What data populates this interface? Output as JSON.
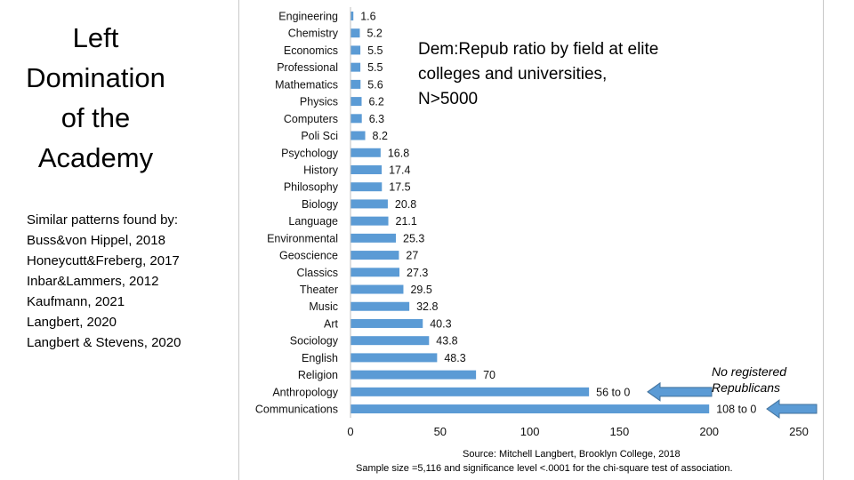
{
  "slide": {
    "title": "Left\nDomination\nof the\nAcademy",
    "patterns_heading": "Similar patterns found by:",
    "patterns": [
      "Buss&von Hippel, 2018",
      "Honeycutt&Freberg, 2017",
      "Inbar&Lammers, 2012",
      "Kaufmann, 2021",
      "Langbert, 2020",
      "Langbert & Stevens, 2020"
    ]
  },
  "chart_data": {
    "type": "bar",
    "orientation": "horizontal",
    "title_lines": [
      "Dem:Repub ratio by field at elite",
      "colleges and universities,",
      "N>5000"
    ],
    "categories": [
      "Engineering",
      "Chemistry",
      "Economics",
      "Professional",
      "Mathematics",
      "Physics",
      "Computers",
      "Poli Sci",
      "Psychology",
      "History",
      "Philosophy",
      "Biology",
      "Language",
      "Environmental",
      "Geoscience",
      "Classics",
      "Theater",
      "Music",
      "Art",
      "Sociology",
      "English",
      "Religion",
      "Anthropology",
      "Communications"
    ],
    "values": [
      1.6,
      5.2,
      5.5,
      5.5,
      5.6,
      6.2,
      6.3,
      8.2,
      16.8,
      17.4,
      17.5,
      20.8,
      21.1,
      25.3,
      27,
      27.3,
      29.5,
      32.8,
      40.3,
      43.8,
      48.3,
      70,
      133,
      200
    ],
    "value_labels": [
      "1.6",
      "5.2",
      "5.5",
      "5.5",
      "5.6",
      "6.2",
      "6.3",
      "8.2",
      "16.8",
      "17.4",
      "17.5",
      "20.8",
      "21.1",
      "25.3",
      "27",
      "27.3",
      "29.5",
      "32.8",
      "40.3",
      "43.8",
      "48.3",
      "70",
      "56 to 0",
      "108 to 0"
    ],
    "xlim": [
      0,
      250
    ],
    "xticks": [
      0,
      50,
      100,
      150,
      200,
      250
    ],
    "bar_color": "#5b9bd5",
    "grid": false,
    "annotation_lines": [
      "No registered",
      "Republicans"
    ],
    "annotation_arrows_for": [
      "Anthropology",
      "Communications"
    ],
    "source_lines": [
      "Source: Mitchell Langbert, Brooklyn College, 2018",
      "Sample size =5,116 and significance level <.0001 for the chi-square test of association."
    ]
  }
}
